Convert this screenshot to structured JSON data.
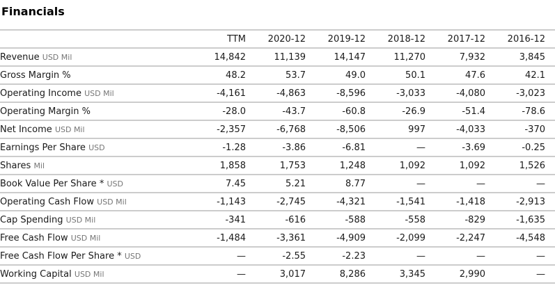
{
  "page_title": "Financials",
  "colors": {
    "background": "#ffffff",
    "title_text": "#000000",
    "cell_text": "#1a1a1a",
    "unit_text": "#757575",
    "row_border": "#cccccc"
  },
  "table": {
    "columns": [
      "TTM",
      "2020-12",
      "2019-12",
      "2018-12",
      "2017-12",
      "2016-12"
    ],
    "rows": [
      {
        "label": "Revenue",
        "unit": "USD Mil",
        "values": [
          "14,842",
          "11,139",
          "14,147",
          "11,270",
          "7,932",
          "3,845"
        ]
      },
      {
        "label": "Gross Margin %",
        "unit": "",
        "values": [
          "48.2",
          "53.7",
          "49.0",
          "50.1",
          "47.6",
          "42.1"
        ]
      },
      {
        "label": "Operating Income",
        "unit": "USD Mil",
        "values": [
          "-4,161",
          "-4,863",
          "-8,596",
          "-3,033",
          "-4,080",
          "-3,023"
        ]
      },
      {
        "label": "Operating Margin %",
        "unit": "",
        "values": [
          "-28.0",
          "-43.7",
          "-60.8",
          "-26.9",
          "-51.4",
          "-78.6"
        ]
      },
      {
        "label": "Net Income",
        "unit": "USD Mil",
        "values": [
          "-2,357",
          "-6,768",
          "-8,506",
          "997",
          "-4,033",
          "-370"
        ]
      },
      {
        "label": "Earnings Per Share",
        "unit": "USD",
        "values": [
          "-1.28",
          "-3.86",
          "-6.81",
          "—",
          "-3.69",
          "-0.25"
        ]
      },
      {
        "label": "Shares",
        "unit": "Mil",
        "values": [
          "1,858",
          "1,753",
          "1,248",
          "1,092",
          "1,092",
          "1,526"
        ]
      },
      {
        "label": "Book Value Per Share *",
        "unit": "USD",
        "values": [
          "7.45",
          "5.21",
          "8.77",
          "—",
          "—",
          "—"
        ]
      },
      {
        "label": "Operating Cash Flow",
        "unit": "USD Mil",
        "values": [
          "-1,143",
          "-2,745",
          "-4,321",
          "-1,541",
          "-1,418",
          "-2,913"
        ]
      },
      {
        "label": "Cap Spending",
        "unit": "USD Mil",
        "values": [
          "-341",
          "-616",
          "-588",
          "-558",
          "-829",
          "-1,635"
        ]
      },
      {
        "label": "Free Cash Flow",
        "unit": "USD Mil",
        "values": [
          "-1,484",
          "-3,361",
          "-4,909",
          "-2,099",
          "-2,247",
          "-4,548"
        ]
      },
      {
        "label": "Free Cash Flow Per Share *",
        "unit": "USD",
        "values": [
          "—",
          "-2.55",
          "-2.23",
          "—",
          "—",
          "—"
        ]
      },
      {
        "label": "Working Capital",
        "unit": "USD Mil",
        "values": [
          "—",
          "3,017",
          "8,286",
          "3,345",
          "2,990",
          "—"
        ]
      }
    ]
  }
}
